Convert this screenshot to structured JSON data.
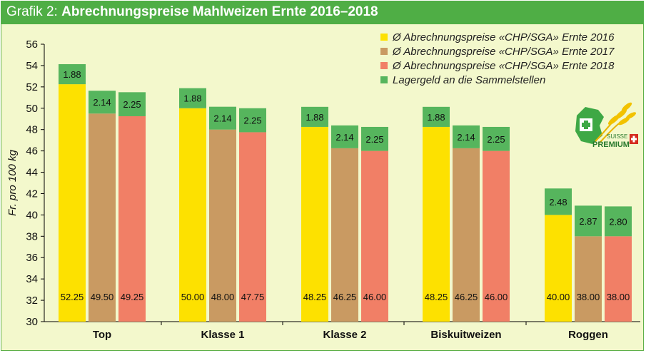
{
  "header": {
    "prefix": "Grafik 2:",
    "title": "Abrechnungspreise Mahlweizen Ernte 2016–2018"
  },
  "colors": {
    "s2016": "#fde100",
    "s2017": "#c99a62",
    "s2018": "#f17f66",
    "lager": "#56b55d",
    "frame": "#4fae45",
    "plot_bg": "#f3f8cc"
  },
  "logo": {
    "text_top": "SUISSE",
    "text_bottom": "PREMIUM"
  },
  "chart_data": {
    "type": "bar",
    "stacked": true,
    "title": "Abrechnungspreise Mahlweizen Ernte 2016–2018",
    "ylabel": "Fr. pro 100 kg",
    "xlabel": "",
    "ylim": [
      30,
      56
    ],
    "yticks": [
      30,
      32,
      34,
      36,
      38,
      40,
      42,
      44,
      46,
      48,
      50,
      52,
      54,
      56
    ],
    "categories": [
      "Top",
      "Klasse 1",
      "Klasse 2",
      "Biskuitweizen",
      "Roggen"
    ],
    "series": [
      {
        "name": "Ø Abrechnungspreise «CHP/SGA» Ernte 2016",
        "values": [
          52.25,
          50.0,
          48.25,
          48.25,
          40.0
        ],
        "labels": [
          "52.25",
          "50.00",
          "48.25",
          "48.25",
          "40.00"
        ]
      },
      {
        "name": "Ø Abrechnungspreise «CHP/SGA» Ernte 2017",
        "values": [
          49.5,
          48.0,
          46.25,
          46.25,
          38.0
        ],
        "labels": [
          "49.50",
          "48.00",
          "46.25",
          "46.25",
          "38.00"
        ]
      },
      {
        "name": "Ø Abrechnungspreise «CHP/SGA» Ernte 2018",
        "values": [
          49.25,
          47.75,
          46.0,
          46.0,
          38.0
        ],
        "labels": [
          "49.25",
          "47.75",
          "46.00",
          "46.00",
          "38.00"
        ]
      },
      {
        "name": "Lagergeld an die Sammelstellen",
        "stacked_on_year": true,
        "values": [
          [
            1.88,
            2.14,
            2.25
          ],
          [
            1.88,
            2.14,
            2.25
          ],
          [
            1.88,
            2.14,
            2.25
          ],
          [
            1.88,
            2.14,
            2.25
          ],
          [
            2.48,
            2.87,
            2.8
          ]
        ],
        "labels": [
          [
            "1.88",
            "2.14",
            "2.25"
          ],
          [
            "1.88",
            "2.14",
            "2.25"
          ],
          [
            "1.88",
            "2.14",
            "2.25"
          ],
          [
            "1.88",
            "2.14",
            "2.25"
          ],
          [
            "2.48",
            "2.87",
            "2.80"
          ]
        ]
      }
    ],
    "legend": "top-right",
    "grid": false
  }
}
